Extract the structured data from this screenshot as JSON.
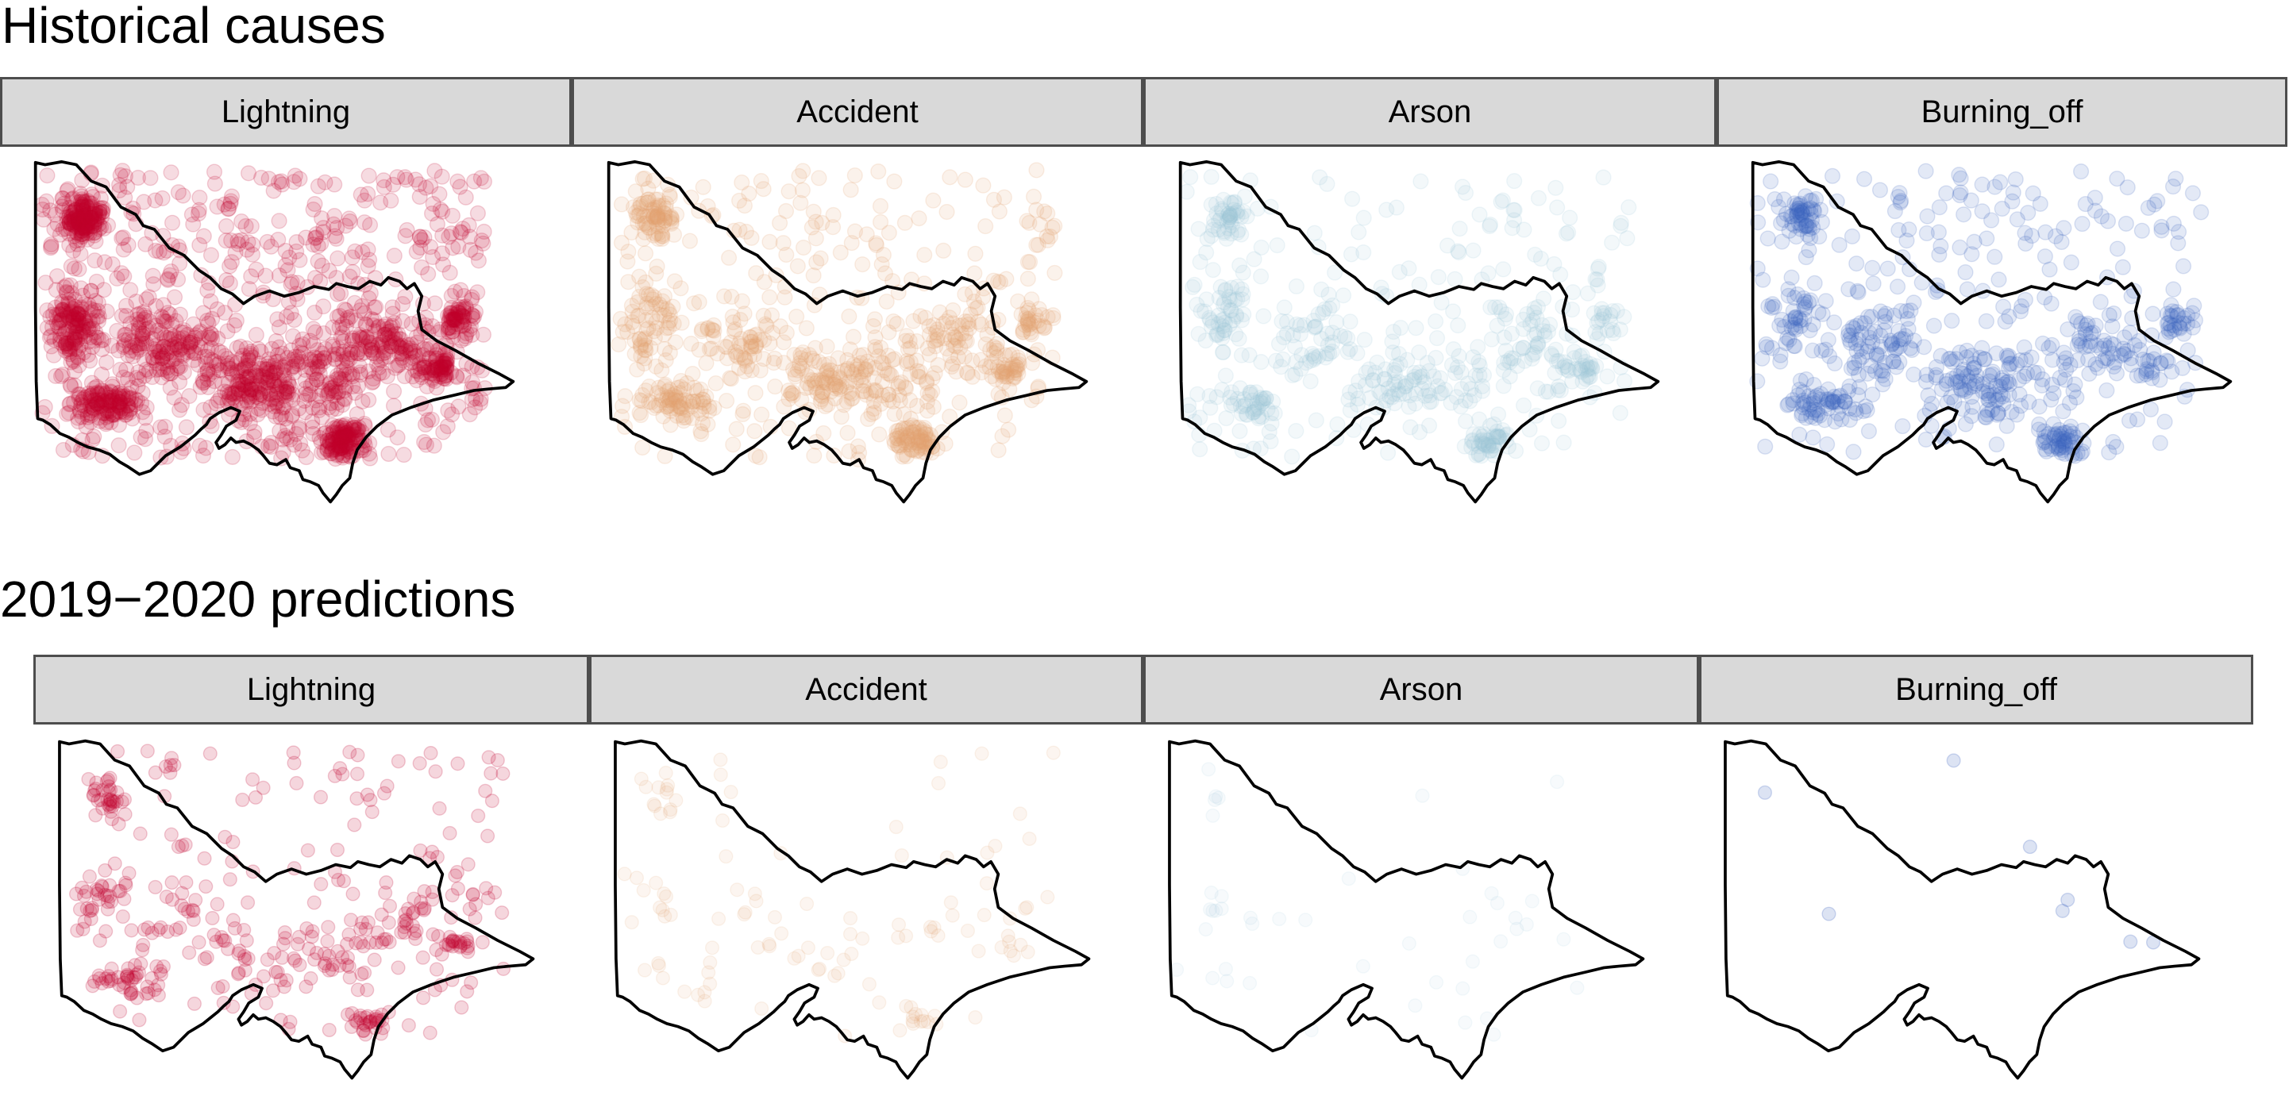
{
  "sections": [
    {
      "title": "Historical causes"
    },
    {
      "title": "2019−2020 predictions"
    }
  ],
  "facets": [
    "Lightning",
    "Accident",
    "Arson",
    "Burning_off"
  ],
  "colors": {
    "Lightning": "#c0002e",
    "Accident": "#e2a06f",
    "Arson": "#9ac5d9",
    "Burning_off": "#3b62bf",
    "outline": "#000000",
    "strip_fill": "#d9d9d9",
    "strip_border": "#4d4d4d"
  }
}
